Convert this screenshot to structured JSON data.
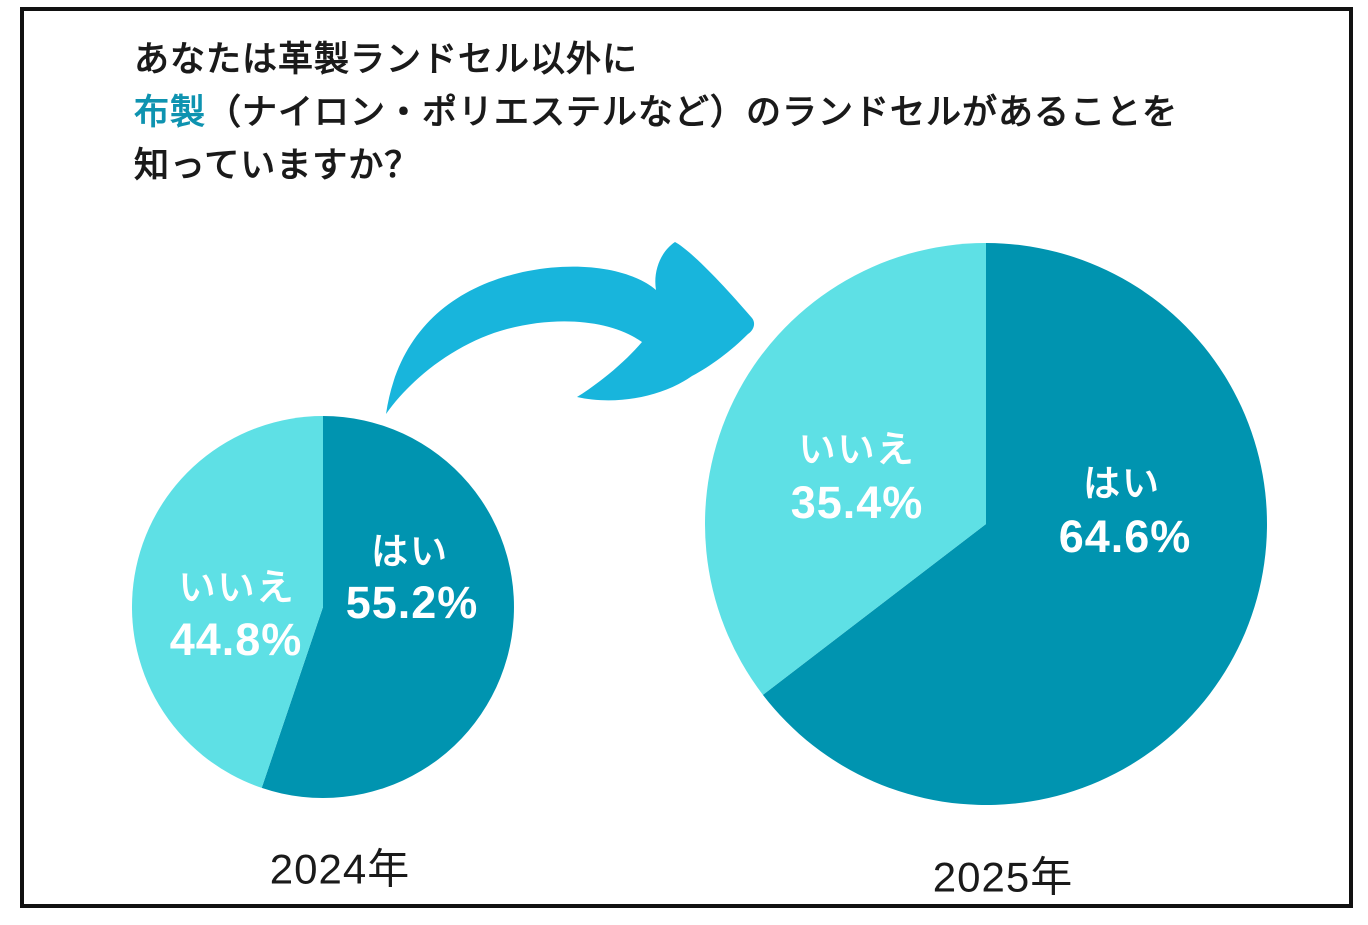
{
  "chart_data": {
    "type": "pie",
    "title": "あなたは革製ランドセル以外に布製（ナイロン・ポリエステルなど）のランドセルがあることを知っていますか？",
    "legend_position": "none",
    "charts": [
      {
        "label": "2024年",
        "categories": [
          "はい",
          "いいえ"
        ],
        "values": [
          55.2,
          44.8
        ]
      },
      {
        "label": "2025年",
        "categories": [
          "はい",
          "いいえ"
        ],
        "values": [
          64.6,
          35.4
        ]
      }
    ],
    "colors": {
      "はい": "#0094b0",
      "いいえ": "#5ee0e5"
    },
    "start_angle": "12-oclock",
    "direction": "clockwise"
  },
  "title": {
    "line1": "あなたは革製ランドセル以外に",
    "line2_highlight": "布製",
    "line2_rest": "（ナイロン・ポリエステルなど）のランドセルがあることを",
    "line3": "知っていますか？"
  },
  "pies": {
    "p2024": {
      "caption": "2024年",
      "slices": [
        {
          "name": "yes",
          "label": "はい",
          "value_label": "55.2%",
          "pct": 55.2,
          "color": "#0094b0"
        },
        {
          "name": "no",
          "label": "いいえ",
          "value_label": "44.8%",
          "pct": 44.8,
          "color": "#5ee0e5"
        }
      ]
    },
    "p2025": {
      "caption": "2025年",
      "slices": [
        {
          "name": "yes",
          "label": "はい",
          "value_label": "64.6%",
          "pct": 64.6,
          "color": "#0094b0"
        },
        {
          "name": "no",
          "label": "いいえ",
          "value_label": "35.4%",
          "pct": 35.4,
          "color": "#5ee0e5"
        }
      ]
    }
  },
  "colors": {
    "yes_slice": "#0094b0",
    "no_slice": "#5ee0e5",
    "arrow": "#18b5dc",
    "title_highlight": "#0e93b0",
    "frame_border": "#111111",
    "label_text": "#ffffff",
    "body_text": "#1a1a1a"
  }
}
